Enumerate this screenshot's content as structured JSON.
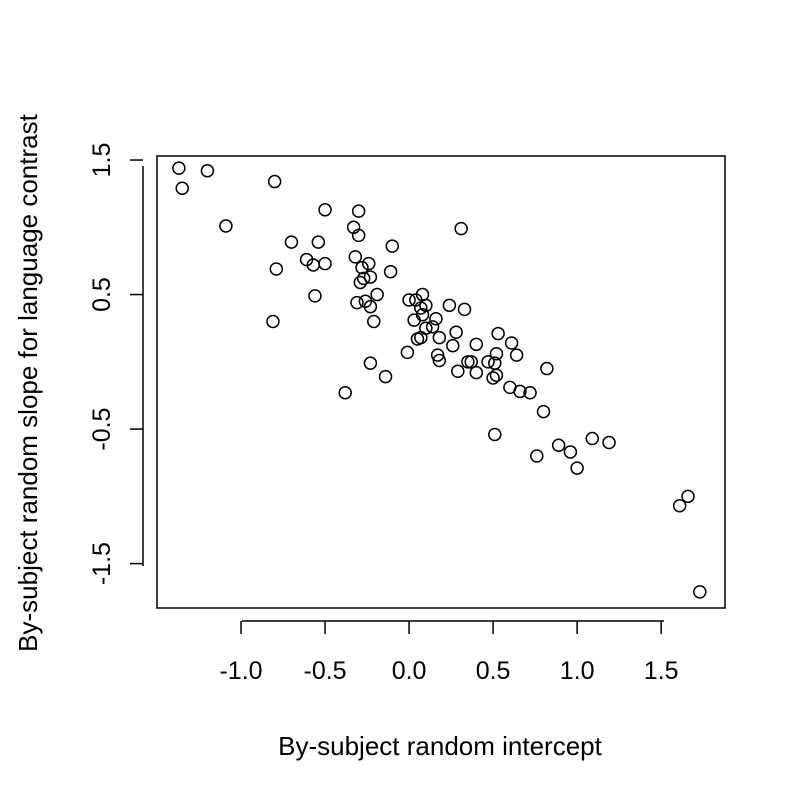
{
  "chart_data": {
    "type": "scatter",
    "title": "",
    "xlabel": "By-subject random intercept",
    "ylabel": "By-subject random slope for language contrast",
    "xlim": [
      -1.5,
      1.88
    ],
    "ylim": [
      -1.83,
      1.53
    ],
    "xticks": [
      -1.0,
      -0.5,
      0.0,
      0.5,
      1.0,
      1.5
    ],
    "yticks": [
      -1.5,
      -0.5,
      0.5,
      1.5
    ],
    "xtick_labels": [
      "-1.0",
      "-0.5",
      "0.0",
      "0.5",
      "1.0",
      "1.5"
    ],
    "ytick_labels": [
      "-1.5",
      "-0.5",
      "0.5",
      "1.5"
    ],
    "grid": false,
    "marker": "open-circle",
    "colors": {
      "marker_stroke": "#000000",
      "axis": "#000000",
      "background": "#ffffff"
    },
    "points": [
      {
        "x": -1.37,
        "y": 1.44
      },
      {
        "x": -1.35,
        "y": 1.29
      },
      {
        "x": -1.2,
        "y": 1.42
      },
      {
        "x": -1.09,
        "y": 1.01
      },
      {
        "x": -0.8,
        "y": 1.34
      },
      {
        "x": -0.79,
        "y": 0.69
      },
      {
        "x": -0.81,
        "y": 0.3
      },
      {
        "x": -0.7,
        "y": 0.89
      },
      {
        "x": -0.61,
        "y": 0.76
      },
      {
        "x": -0.57,
        "y": 0.72
      },
      {
        "x": -0.54,
        "y": 0.89
      },
      {
        "x": -0.56,
        "y": 0.49
      },
      {
        "x": -0.5,
        "y": 1.13
      },
      {
        "x": -0.5,
        "y": 0.73
      },
      {
        "x": -0.33,
        "y": 1.0
      },
      {
        "x": -0.3,
        "y": 1.12
      },
      {
        "x": -0.3,
        "y": 0.94
      },
      {
        "x": -0.32,
        "y": 0.78
      },
      {
        "x": -0.28,
        "y": 0.7
      },
      {
        "x": -0.24,
        "y": 0.73
      },
      {
        "x": -0.29,
        "y": 0.59
      },
      {
        "x": -0.27,
        "y": 0.62
      },
      {
        "x": -0.23,
        "y": 0.63
      },
      {
        "x": -0.31,
        "y": 0.44
      },
      {
        "x": -0.26,
        "y": 0.45
      },
      {
        "x": -0.23,
        "y": 0.41
      },
      {
        "x": -0.19,
        "y": 0.5
      },
      {
        "x": -0.21,
        "y": 0.3
      },
      {
        "x": -0.23,
        "y": -0.01
      },
      {
        "x": -0.38,
        "y": -0.23
      },
      {
        "x": -0.14,
        "y": -0.11
      },
      {
        "x": -0.1,
        "y": 0.86
      },
      {
        "x": -0.11,
        "y": 0.67
      },
      {
        "x": -0.01,
        "y": 0.07
      },
      {
        "x": 0.0,
        "y": 0.46
      },
      {
        "x": 0.04,
        "y": 0.46
      },
      {
        "x": 0.08,
        "y": 0.5
      },
      {
        "x": 0.07,
        "y": 0.4
      },
      {
        "x": 0.1,
        "y": 0.42
      },
      {
        "x": 0.08,
        "y": 0.35
      },
      {
        "x": 0.03,
        "y": 0.31
      },
      {
        "x": 0.1,
        "y": 0.25
      },
      {
        "x": 0.14,
        "y": 0.26
      },
      {
        "x": 0.05,
        "y": 0.17
      },
      {
        "x": 0.07,
        "y": 0.18
      },
      {
        "x": 0.16,
        "y": 0.32
      },
      {
        "x": 0.18,
        "y": 0.18
      },
      {
        "x": 0.17,
        "y": 0.05
      },
      {
        "x": 0.18,
        "y": 0.01
      },
      {
        "x": 0.24,
        "y": 0.42
      },
      {
        "x": 0.33,
        "y": 0.39
      },
      {
        "x": 0.28,
        "y": 0.22
      },
      {
        "x": 0.26,
        "y": 0.12
      },
      {
        "x": 0.31,
        "y": 0.99
      },
      {
        "x": 0.29,
        "y": -0.07
      },
      {
        "x": 0.35,
        "y": 0.0
      },
      {
        "x": 0.37,
        "y": 0.0
      },
      {
        "x": 0.4,
        "y": 0.13
      },
      {
        "x": 0.4,
        "y": -0.08
      },
      {
        "x": 0.47,
        "y": 0.0
      },
      {
        "x": 0.5,
        "y": -0.12
      },
      {
        "x": 0.51,
        "y": -0.01
      },
      {
        "x": 0.52,
        "y": 0.06
      },
      {
        "x": 0.52,
        "y": -0.1
      },
      {
        "x": 0.53,
        "y": 0.21
      },
      {
        "x": 0.51,
        "y": -0.54
      },
      {
        "x": 0.61,
        "y": 0.14
      },
      {
        "x": 0.64,
        "y": 0.05
      },
      {
        "x": 0.6,
        "y": -0.19
      },
      {
        "x": 0.66,
        "y": -0.22
      },
      {
        "x": 0.72,
        "y": -0.23
      },
      {
        "x": 0.82,
        "y": -0.05
      },
      {
        "x": 0.8,
        "y": -0.37
      },
      {
        "x": 0.76,
        "y": -0.7
      },
      {
        "x": 0.89,
        "y": -0.62
      },
      {
        "x": 0.96,
        "y": -0.67
      },
      {
        "x": 1.0,
        "y": -0.79
      },
      {
        "x": 1.09,
        "y": -0.57
      },
      {
        "x": 1.19,
        "y": -0.6
      },
      {
        "x": 1.61,
        "y": -1.07
      },
      {
        "x": 1.66,
        "y": -1.0
      },
      {
        "x": 1.73,
        "y": -1.71
      }
    ]
  }
}
